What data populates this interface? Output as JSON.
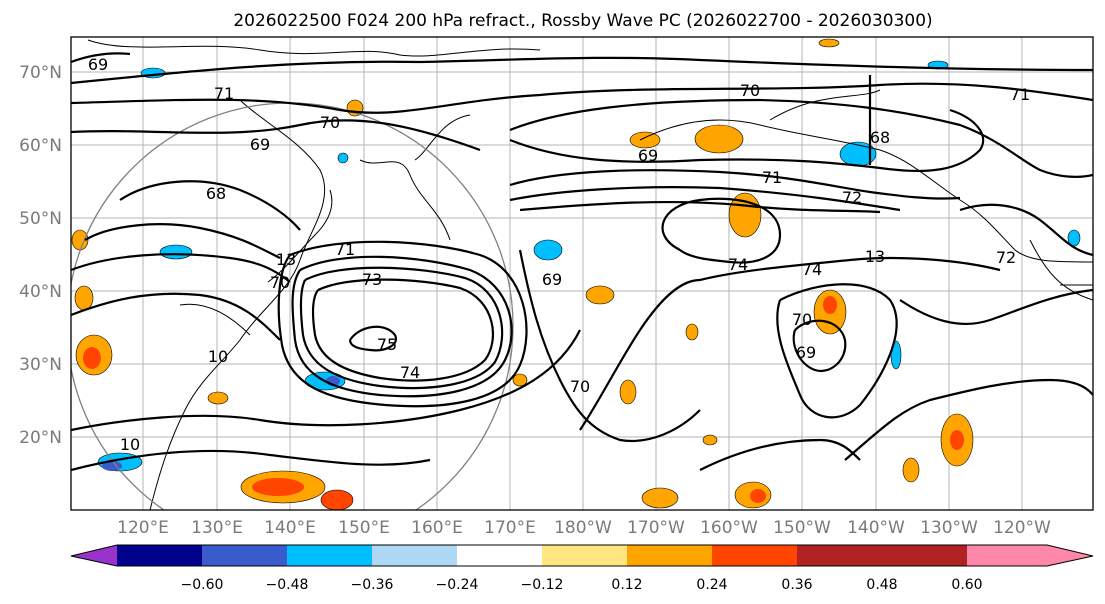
{
  "title": "2026022500 F024 200 hPa refract., Rossby Wave PC (2026022700 - 2026030300)",
  "lat_labels": [
    "70°N",
    "60°N",
    "50°N",
    "40°N",
    "30°N",
    "20°N"
  ],
  "lon_labels": [
    "120°E",
    "130°E",
    "140°E",
    "150°E",
    "160°E",
    "170°E",
    "180°W",
    "170°W",
    "160°W",
    "150°W",
    "140°W",
    "130°W",
    "120°W"
  ],
  "contour_labels": [
    "69",
    "71",
    "70",
    "69",
    "71",
    "68",
    "68",
    "69",
    "71",
    "72",
    "70",
    "72",
    "74",
    "74",
    "13",
    "73",
    "75",
    "74",
    "69",
    "70",
    "70",
    "10",
    "10",
    "69",
    "71",
    "13",
    "70"
  ],
  "colorbar": {
    "ticks": [
      "−0.60",
      "−0.48",
      "−0.36",
      "−0.24",
      "−0.12",
      "0.12",
      "0.24",
      "0.36",
      "0.48",
      "0.60"
    ],
    "colors": [
      "#9933cc",
      "#00008b",
      "#3a5bcc",
      "#00bfff",
      "#add8f6",
      "#ffffff",
      "#ffe680",
      "#ffa500",
      "#ff4500",
      "#b22222",
      "#ff88aa"
    ]
  },
  "map_colors": {
    "contour": "#000000",
    "coast": "#000000",
    "grid": "#b5b5b5",
    "circle": "#808080"
  }
}
